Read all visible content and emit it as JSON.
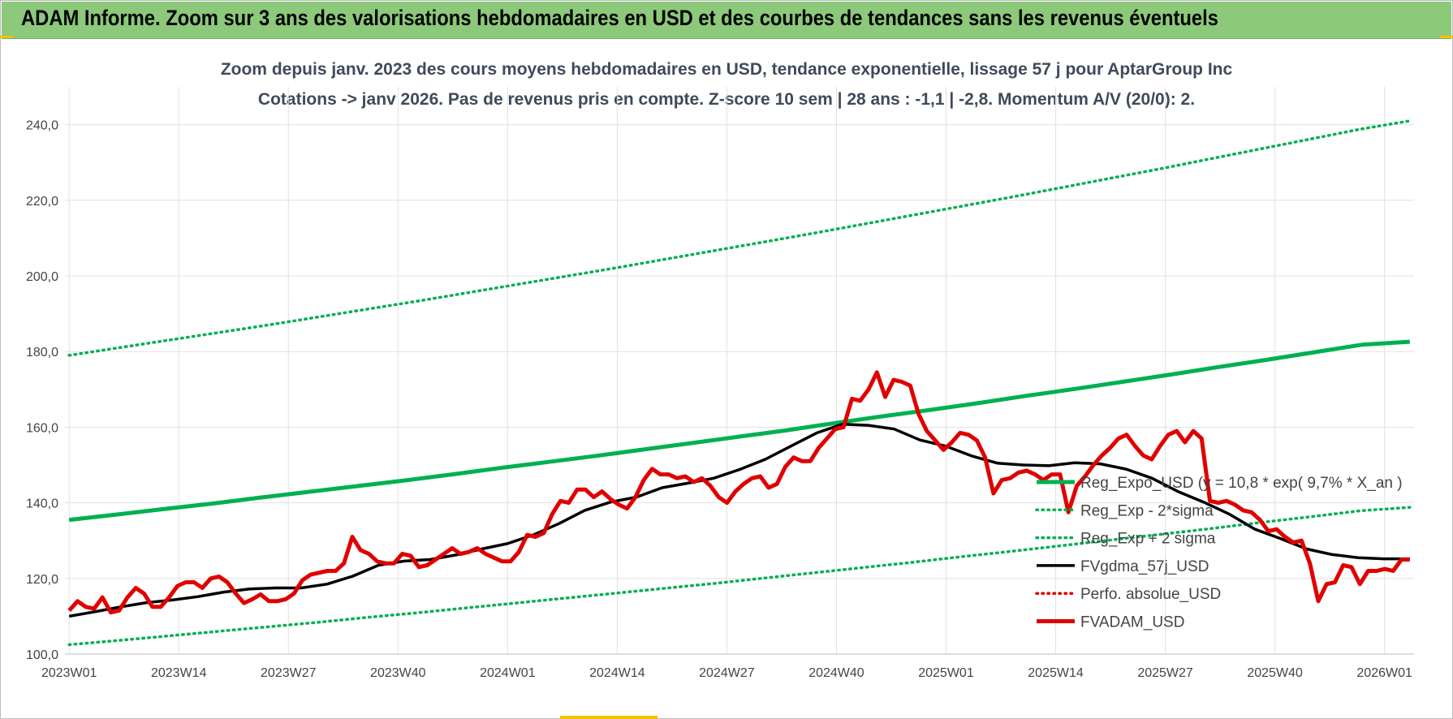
{
  "header": {
    "title": "ADAM Informe. Zoom sur 3 ans des valorisations hebdomadaires en USD et des courbes de tendances sans les revenus éventuels"
  },
  "colors": {
    "header_bg": "#8cc97a",
    "reg_expo": "#00b050",
    "fvgdma": "#000000",
    "fvadam": "#e00000",
    "perfo": "#e00000"
  },
  "chart_data": {
    "type": "line",
    "title": "Zoom depuis janv. 2023 des cours moyens hebdomadaires en USD, tendance exponentielle, lissage 57 j pour AptarGroup Inc",
    "subtitle": "Cotations -> janv 2026. Pas de revenus pris en compte. Z-score 10 sem | 28 ans : -1,1 | -2,8. Momentum A/V (20/0): 2.",
    "xlabel": "",
    "ylabel": "",
    "ylim": [
      100,
      250
    ],
    "yticks": [
      "100,0",
      "120,0",
      "140,0",
      "160,0",
      "180,0",
      "200,0",
      "220,0",
      "240,0"
    ],
    "x_tick_labels": [
      "2023W01",
      "2023W14",
      "2023W27",
      "2023W40",
      "2024W01",
      "2024W14",
      "2024W27",
      "2024W40",
      "2025W01",
      "2025W14",
      "2025W27",
      "2025W40",
      "2026W01"
    ],
    "weeks_count": 160,
    "grid": true,
    "legend_position": "right",
    "series": [
      {
        "name": "Reg_Expo_USD (y = 10,8 * exp( 9,7% *  X_an )",
        "style": "solid-thick",
        "color": "#00b050",
        "values": [
          135.5,
          136.9,
          138.4,
          139.8,
          141.4,
          142.9,
          144.4,
          145.9,
          147.5,
          149.2,
          150.8,
          152.4,
          154.1,
          155.8,
          157.5,
          159.2,
          161.1,
          162.9,
          164.6,
          166.4,
          168.3,
          170.1,
          172.0,
          173.9,
          175.9,
          177.8,
          179.8,
          181.8,
          182.6
        ]
      },
      {
        "name": "Reg_Exp - 2*sigma",
        "style": "dotted",
        "color": "#00b050",
        "values": [
          102.5,
          103.6,
          104.8,
          106.0,
          107.2,
          108.4,
          109.7,
          110.9,
          112.2,
          113.5,
          114.8,
          116.1,
          117.4,
          118.7,
          120.1,
          121.5,
          122.9,
          124.3,
          125.8,
          127.2,
          128.7,
          130.2,
          131.7,
          133.2,
          134.8,
          136.3,
          137.9,
          138.8
        ]
      },
      {
        "name": "Reg_Exp + 2 sigma",
        "style": "dotted",
        "color": "#00b050",
        "values": [
          179.0,
          181.0,
          183.0,
          185.0,
          187.0,
          189.1,
          191.2,
          193.3,
          195.5,
          197.7,
          199.9,
          202.1,
          204.4,
          206.7,
          209.0,
          211.3,
          213.7,
          216.1,
          218.5,
          220.9,
          223.4,
          225.9,
          228.4,
          231.0,
          233.6,
          236.2,
          238.8,
          241.0
        ]
      },
      {
        "name": "FVgdma_57j_USD",
        "style": "solid",
        "color": "#000000",
        "values": [
          110.0,
          111.2,
          112.5,
          113.6,
          114.3,
          115.2,
          116.4,
          117.2,
          117.5,
          117.5,
          118.5,
          120.6,
          123.5,
          124.6,
          125.0,
          126.2,
          127.8,
          129.2,
          131.5,
          134.5,
          138.0,
          140.2,
          141.5,
          144.0,
          145.2,
          146.5,
          148.8,
          151.5,
          155.0,
          158.5,
          160.8,
          160.5,
          159.5,
          156.6,
          155.0,
          152.4,
          150.5,
          150.0,
          149.8,
          150.6,
          150.3,
          148.9,
          146.5,
          143.0,
          140.2,
          137.0,
          133.0,
          130.5,
          127.8,
          126.3,
          125.5,
          125.2,
          125.2
        ]
      },
      {
        "name": "Perfo. absolue_USD",
        "style": "dotted",
        "color": "#e00000",
        "values": []
      },
      {
        "name": "FVADAM_USD",
        "style": "solid-thick",
        "color": "#e00000",
        "values": [
          111.5,
          114.0,
          112.5,
          112.0,
          115.0,
          111.0,
          111.5,
          115.0,
          117.5,
          116.0,
          112.5,
          112.5,
          115.0,
          118.0,
          119.0,
          119.0,
          117.5,
          120.0,
          120.5,
          119.0,
          116.0,
          113.5,
          114.5,
          115.8,
          114.0,
          114.0,
          114.5,
          116.0,
          119.5,
          121.0,
          121.5,
          122.0,
          122.0,
          124.0,
          131.0,
          127.5,
          126.5,
          124.5,
          124.0,
          124.0,
          126.5,
          126.0,
          123.0,
          123.5,
          125.0,
          126.5,
          128.0,
          126.5,
          127.0,
          128.0,
          126.5,
          125.5,
          124.5,
          124.5,
          127.0,
          131.5,
          131.0,
          132.0,
          137.0,
          140.5,
          140.0,
          143.5,
          143.5,
          141.5,
          143.0,
          141.0,
          139.5,
          138.5,
          141.5,
          146.0,
          149.0,
          147.5,
          147.5,
          146.5,
          147.0,
          145.5,
          146.5,
          144.5,
          141.5,
          140.0,
          143.0,
          145.0,
          146.5,
          147.0,
          144.0,
          145.0,
          149.5,
          152.0,
          151.0,
          151.0,
          154.5,
          157.0,
          159.5,
          160.0,
          167.5,
          167.0,
          170.0,
          174.5,
          168.0,
          172.5,
          172.0,
          171.0,
          163.5,
          159.0,
          156.5,
          154.0,
          156.0,
          158.5,
          158.0,
          156.5,
          152.0,
          142.5,
          146.0,
          146.5,
          148.0,
          148.5,
          147.5,
          146.0,
          147.5,
          147.5,
          137.5,
          144.5,
          147.0,
          150.0,
          152.5,
          154.5,
          157.0,
          158.0,
          155.0,
          152.5,
          151.5,
          155.0,
          158.0,
          159.0,
          156.0,
          159.0,
          157.0,
          140.5,
          140.0,
          140.5,
          139.5,
          138.0,
          137.5,
          135.5,
          132.5,
          133.0,
          131.0,
          129.5,
          130.0,
          124.0,
          114.0,
          118.5,
          119.0,
          123.5,
          123.0,
          118.5,
          122.0,
          122.0,
          122.5,
          122.0,
          125.0,
          125.0
        ]
      }
    ]
  }
}
